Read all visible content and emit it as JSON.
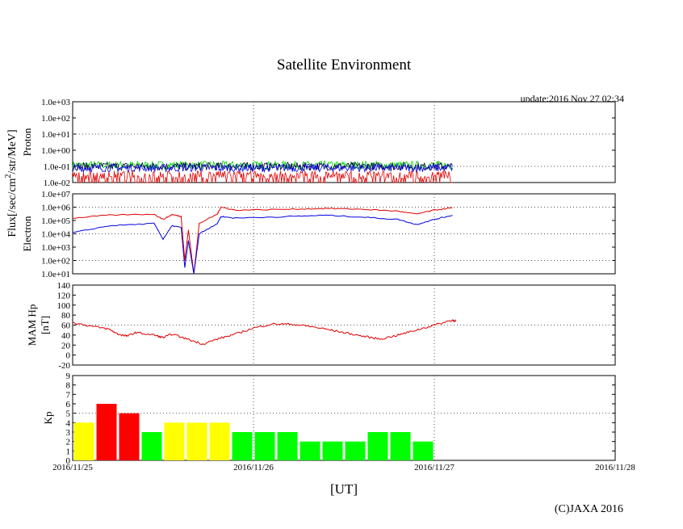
{
  "title": "Satellite Environment",
  "update": "update:2016 Nov 27 02:34",
  "copyright": "(C)JAXA 2016",
  "xlabel": "[UT]",
  "flux_label": "Flux[/sec/cm",
  "flux_label_sup": "2",
  "flux_label_tail": "/str/MeV]",
  "colors": {
    "red": "#e00000",
    "blue": "#0000e0",
    "green": "#00d000",
    "navy": "#000040",
    "yellow": "#ffff00",
    "kp_red": "#ff0000",
    "kp_green": "#00ff00"
  },
  "chart_data": {
    "type": "line",
    "x_ticks": [
      "2016/11/25",
      "2016/11/26",
      "2016/11/27",
      "2016/11/28"
    ],
    "x_range_days": [
      0,
      3
    ],
    "panels": [
      {
        "id": "proton",
        "ylabel": "Proton",
        "scale": "log",
        "ylim_exp": [
          -2,
          3
        ],
        "yticks": [
          "1.0e-02",
          "1.0e-01",
          "1.0e+00",
          "1.0e+01",
          "1.0e+02",
          "1.0e+03"
        ],
        "series": [
          {
            "name": "proton-1",
            "color": "#00d000",
            "level": 0.12
          },
          {
            "name": "proton-2",
            "color": "#000040",
            "level": 0.1
          },
          {
            "name": "proton-3",
            "color": "#0000e0",
            "level": 0.08
          },
          {
            "name": "proton-4",
            "color": "#e00000",
            "level": 0.03
          }
        ],
        "end_day": 2.1
      },
      {
        "id": "electron",
        "ylabel": "Electron",
        "scale": "log",
        "ylim_exp": [
          1,
          7
        ],
        "yticks": [
          "1.0e+01",
          "1.0e+02",
          "1.0e+03",
          "1.0e+04",
          "1.0e+05",
          "1.0e+06",
          "1.0e+07"
        ],
        "series": [
          {
            "name": "electron-high",
            "color": "#e00000",
            "points": [
              [
                0,
                150000
              ],
              [
                0.2,
                250000
              ],
              [
                0.45,
                300000
              ],
              [
                0.5,
                120000
              ],
              [
                0.55,
                280000
              ],
              [
                0.6,
                200000
              ],
              [
                0.62,
                100
              ],
              [
                0.64,
                20000
              ],
              [
                0.67,
                10
              ],
              [
                0.7,
                60000
              ],
              [
                0.8,
                300000
              ],
              [
                0.82,
                1000000
              ],
              [
                0.9,
                600000
              ],
              [
                1.2,
                700000
              ],
              [
                1.4,
                800000
              ],
              [
                1.6,
                700000
              ],
              [
                1.8,
                500000
              ],
              [
                1.9,
                300000
              ],
              [
                2.0,
                600000
              ],
              [
                2.1,
                900000
              ]
            ]
          },
          {
            "name": "electron-low",
            "color": "#0000e0",
            "points": [
              [
                0,
                12000
              ],
              [
                0.2,
                40000
              ],
              [
                0.45,
                60000
              ],
              [
                0.5,
                4000
              ],
              [
                0.55,
                40000
              ],
              [
                0.6,
                30000
              ],
              [
                0.62,
                30
              ],
              [
                0.64,
                3000
              ],
              [
                0.67,
                10
              ],
              [
                0.7,
                10000
              ],
              [
                0.8,
                60000
              ],
              [
                0.82,
                200000
              ],
              [
                0.9,
                150000
              ],
              [
                1.2,
                200000
              ],
              [
                1.4,
                250000
              ],
              [
                1.6,
                180000
              ],
              [
                1.8,
                120000
              ],
              [
                1.9,
                50000
              ],
              [
                2.0,
                120000
              ],
              [
                2.1,
                250000
              ]
            ]
          }
        ]
      },
      {
        "id": "mam-hp",
        "ylabel": "MAM Hp",
        "ylabel2": "[nT]",
        "scale": "linear",
        "ylim": [
          -20,
          140
        ],
        "yticks": [
          "-20",
          "0",
          "20",
          "40",
          "60",
          "80",
          "100",
          "120",
          "140"
        ],
        "series": [
          {
            "name": "hp",
            "color": "#e00000",
            "points": [
              [
                0,
                65
              ],
              [
                0.1,
                58
              ],
              [
                0.2,
                52
              ],
              [
                0.25,
                42
              ],
              [
                0.3,
                38
              ],
              [
                0.35,
                45
              ],
              [
                0.45,
                40
              ],
              [
                0.5,
                35
              ],
              [
                0.55,
                42
              ],
              [
                0.65,
                30
              ],
              [
                0.72,
                22
              ],
              [
                0.8,
                32
              ],
              [
                0.9,
                42
              ],
              [
                1.0,
                54
              ],
              [
                1.1,
                62
              ],
              [
                1.2,
                62
              ],
              [
                1.3,
                58
              ],
              [
                1.4,
                52
              ],
              [
                1.5,
                45
              ],
              [
                1.6,
                38
              ],
              [
                1.7,
                32
              ],
              [
                1.8,
                40
              ],
              [
                1.9,
                50
              ],
              [
                2.0,
                60
              ],
              [
                2.1,
                70
              ],
              [
                2.12,
                68
              ]
            ]
          }
        ]
      },
      {
        "id": "kp",
        "ylabel": "Kp",
        "type": "bar",
        "scale": "linear",
        "ylim": [
          0,
          9
        ],
        "yticks": [
          "0",
          "1",
          "2",
          "3",
          "4",
          "5",
          "6",
          "7",
          "8",
          "9"
        ],
        "bar_hours": 3,
        "values": [
          4,
          6,
          5,
          3,
          4,
          4,
          4,
          3,
          3,
          3,
          2,
          2,
          2,
          3,
          3,
          2
        ]
      }
    ]
  }
}
